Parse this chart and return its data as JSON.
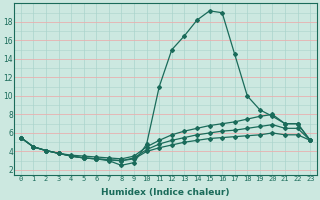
{
  "xlabel": "Humidex (Indice chaleur)",
  "x": [
    0,
    1,
    2,
    3,
    4,
    5,
    6,
    7,
    8,
    9,
    10,
    11,
    12,
    13,
    14,
    15,
    16,
    17,
    18,
    19,
    20,
    21,
    22,
    23
  ],
  "line1": [
    5.5,
    4.5,
    4.1,
    3.8,
    3.5,
    3.3,
    3.2,
    3.0,
    2.5,
    2.8,
    4.8,
    11.0,
    15.0,
    16.5,
    18.2,
    19.2,
    19.0,
    14.5,
    10.0,
    8.5,
    7.8,
    7.0,
    7.0,
    5.2
  ],
  "line2": [
    5.5,
    4.5,
    4.1,
    3.8,
    3.6,
    3.5,
    3.4,
    3.3,
    3.2,
    3.5,
    4.5,
    5.2,
    5.8,
    6.2,
    6.5,
    6.8,
    7.0,
    7.2,
    7.5,
    7.8,
    8.0,
    7.0,
    7.0,
    5.2
  ],
  "line3": [
    5.5,
    4.5,
    4.1,
    3.8,
    3.5,
    3.3,
    3.2,
    3.1,
    3.0,
    3.3,
    4.2,
    4.8,
    5.2,
    5.5,
    5.8,
    6.0,
    6.2,
    6.3,
    6.5,
    6.7,
    6.9,
    6.5,
    6.5,
    5.2
  ],
  "line4": [
    5.5,
    4.5,
    4.1,
    3.8,
    3.5,
    3.3,
    3.2,
    3.1,
    3.0,
    3.2,
    4.0,
    4.4,
    4.7,
    5.0,
    5.2,
    5.4,
    5.5,
    5.6,
    5.7,
    5.8,
    6.0,
    5.8,
    5.8,
    5.2
  ],
  "color": "#1a6b5a",
  "bg_color": "#cce8e0",
  "grid_minor_color": "#aad4cc",
  "grid_major_color": "#e8b0b0",
  "ylim": [
    1.5,
    20.0
  ],
  "xlim": [
    -0.5,
    23.5
  ],
  "yticks": [
    2,
    4,
    6,
    8,
    10,
    12,
    14,
    16,
    18
  ],
  "xticks": [
    0,
    1,
    2,
    3,
    4,
    5,
    6,
    7,
    8,
    9,
    10,
    11,
    12,
    13,
    14,
    15,
    16,
    17,
    18,
    19,
    20,
    21,
    22,
    23
  ],
  "marker": "D",
  "markersize": 2.0,
  "linewidth": 0.9,
  "tick_fontsize": 5.0,
  "xlabel_fontsize": 6.5
}
